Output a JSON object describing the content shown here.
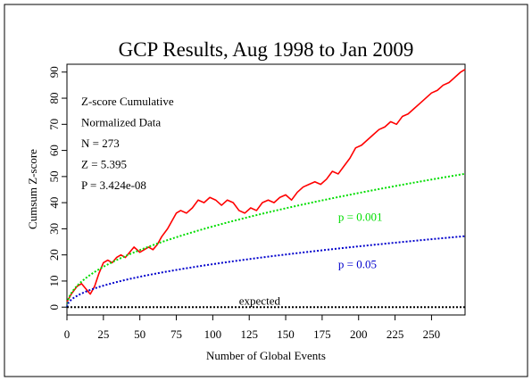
{
  "chart_data": {
    "type": "line",
    "title": "GCP Results, Aug 1998 to Jan 2009",
    "xlabel": "Number of Global Events",
    "ylabel": "Cumsum Z-score",
    "xlim": [
      0,
      273
    ],
    "ylim": [
      -3,
      93
    ],
    "x_ticks": [
      0,
      25,
      50,
      75,
      100,
      125,
      150,
      175,
      200,
      225,
      250
    ],
    "y_ticks": [
      0,
      10,
      20,
      30,
      40,
      50,
      60,
      70,
      80,
      90
    ],
    "grid": false,
    "stats": [
      "Z-score Cumulative",
      "Normalized Data",
      "N = 273",
      "Z = 5.395",
      "P = 3.424e-08"
    ],
    "series": [
      {
        "kind": "observed",
        "color": "#ff0000",
        "x": [
          0,
          3,
          7,
          10,
          13,
          16,
          19,
          22,
          25,
          28,
          31,
          34,
          37,
          40,
          43,
          46,
          50,
          53,
          56,
          59,
          62,
          65,
          69,
          72,
          75,
          78,
          82,
          86,
          90,
          94,
          98,
          102,
          106,
          110,
          114,
          118,
          122,
          126,
          130,
          134,
          138,
          142,
          146,
          150,
          154,
          158,
          162,
          166,
          170,
          174,
          178,
          182,
          186,
          190,
          194,
          198,
          202,
          206,
          210,
          214,
          218,
          222,
          226,
          230,
          234,
          238,
          242,
          246,
          250,
          254,
          258,
          262,
          266,
          270,
          273
        ],
        "y": [
          2,
          5,
          8,
          9,
          7,
          5,
          8,
          13,
          17,
          18,
          17,
          19,
          20,
          19,
          21,
          23,
          21,
          22,
          23,
          22,
          24,
          27,
          30,
          33,
          36,
          37,
          36,
          38,
          41,
          40,
          42,
          41,
          39,
          41,
          40,
          37,
          36,
          38,
          37,
          40,
          41,
          40,
          42,
          43,
          41,
          44,
          46,
          47,
          48,
          47,
          49,
          52,
          51,
          54,
          57,
          61,
          62,
          64,
          66,
          68,
          69,
          71,
          70,
          73,
          74,
          76,
          78,
          80,
          82,
          83,
          85,
          86,
          88,
          90,
          91
        ]
      },
      {
        "kind": "p001",
        "color": "#00dd00",
        "dashed": true,
        "label": "p = 0.001",
        "label_at": [
          186,
          33
        ],
        "func": "sqrt",
        "k": 3.09
      },
      {
        "kind": "p005",
        "color": "#0000cc",
        "dashed": true,
        "label": "p = 0.05",
        "label_at": [
          186,
          15
        ],
        "func": "sqrt",
        "k": 1.645
      },
      {
        "kind": "expected",
        "color": "#000000",
        "dashed": true,
        "label": "expected",
        "label_at": [
          118,
          1
        ],
        "func": "constant",
        "k": 0
      }
    ]
  }
}
